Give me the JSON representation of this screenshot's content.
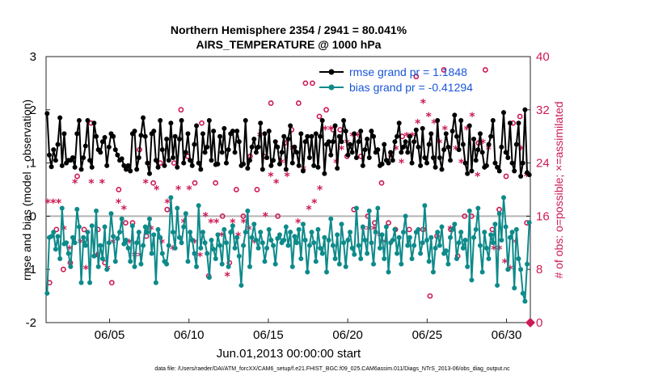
{
  "chart_data": {
    "type": "line",
    "title": "Northern Hemisphere 2354 / 2941 = 80.041%",
    "subtitle": "AIRS_TEMPERATURE @ 1000 hPa",
    "xlabel": "Jun.01,2013 00:00:00 start",
    "ylabel": "rmse and bias (model - observation)",
    "ylabel_right": "# of obs: o=possible; ×=assimilated",
    "ylim": [
      -2,
      3
    ],
    "ylim_right": [
      0,
      40
    ],
    "xlim": [
      1.0,
      31.5
    ],
    "x_ticks": [
      5,
      10,
      15,
      20,
      25,
      30
    ],
    "x_tick_labels": [
      "06/05",
      "06/10",
      "06/15",
      "06/20",
      "06/25",
      "06/30"
    ],
    "y_ticks": [
      -2,
      -1,
      0,
      1,
      2,
      3
    ],
    "y_tick_labels": [
      "-2",
      "-1",
      "0",
      "1",
      "2",
      "3"
    ],
    "y_ticks_right": [
      0,
      8,
      16,
      24,
      32,
      40
    ],
    "y_tick_labels_right": [
      "0",
      "8",
      "16",
      "24",
      "32",
      "40"
    ],
    "legend_position": "top-right",
    "footnote": "data file: /Users/raeder/DAI/ATM_forcXX/CAM6_setup/f.e21.FHIST_BGC.f09_025.CAM6assim.011/Diags_NTrS_2013-06/obs_diag_output.nc",
    "series": [
      {
        "name": "rmse grand pr = 1.1848",
        "color": "#000000",
        "values": [
          1.93,
          1.15,
          0.93,
          1.25,
          1.05,
          1.35,
          1.85,
          0.95,
          1.55,
          1.0,
          1.05,
          1.05,
          1.1,
          0.92,
          1.55,
          1.8,
          0.88,
          1.1,
          1.32,
          1.8,
          1.05,
          0.92,
          1.75,
          1.5,
          1.25,
          1.2,
          1.4,
          1.48,
          0.95,
          1.3,
          1.55,
          1.5,
          1.25,
          1.15,
          1.05,
          1.08,
          0.95,
          0.88,
          0.95,
          0.85,
          1.55,
          1.6,
          0.88,
          1.1,
          1.52,
          1.85,
          1.5,
          1.0,
          0.8,
          1.55,
          1.6,
          1.05,
          0.92,
          1.8,
          1.25,
          0.95,
          1.45,
          1.05,
          1.75,
          1.1,
          1.5,
          0.92,
          1.45,
          1.8,
          1.0,
          1.2,
          1.55,
          1.05,
          0.95,
          1.35,
          1.7,
          1.0,
          0.88,
          1.55,
          1.2,
          1.3,
          1.8,
          1.05,
          1.6,
          0.97,
          0.98,
          1.5,
          1.2,
          1.65,
          1.0,
          1.25,
          1.55,
          1.6,
          1.2,
          1.6,
          1.4,
          0.95,
          0.98,
          1.8,
          0.9,
          1.05,
          1.3,
          1.45,
          1.2,
          1.3,
          1.75,
          0.88,
          1.55,
          1.1,
          1.6,
          0.95,
          1.05,
          1.4,
          1.3,
          0.98,
          1.2,
          1.5,
          0.88,
          1.45,
          1.7,
          1.0,
          1.3,
          1.2,
          0.95,
          1.55,
          0.85,
          1.4,
          1.5,
          1.1,
          1.5,
          0.95,
          1.55,
          0.92,
          1.5,
          1.8,
          0.8,
          1.35,
          1.4,
          1.15,
          1.4,
          1.7,
          0.9,
          1.5,
          1.4,
          1.8,
          1.6,
          1.15,
          1.35,
          1.2,
          1.55,
          1.1,
          1.4,
          1.6,
          0.95,
          1.25,
          1.45,
          1.1,
          1.6,
          1.5,
          1.2,
          1.25,
          0.95,
          0.98,
          1.35,
          1.05,
          1.0,
          1.2,
          1.05,
          1.4,
          1.5,
          1.75,
          1.2,
          1.3,
          1.4,
          1.2,
          1.5,
          1.0,
          1.4,
          1.62,
          1.3,
          0.95,
          1.65,
          1.1,
          1.0,
          1.35,
          1.55,
          1.1,
          0.92,
          1.8,
          1.1,
          0.88,
          1.25,
          1.55,
          1.3,
          1.05,
          1.6,
          1.9,
          1.5,
          1.25,
          1.8,
          1.35,
          1.0,
          0.8,
          1.7,
          0.85,
          1.45,
          1.05,
          1.25,
          1.55,
          1.2,
          0.92,
          0.95,
          1.35,
          1.5,
          1.8,
          1.0,
          0.92,
          0.85,
          1.3,
          1.95,
          1.2,
          1.1,
          1.75,
          1.0,
          0.85,
          1.35,
          1.75,
          0.75,
          1.0,
          2.0,
          0.82,
          0.78
        ]
      },
      {
        "name": "bias grand pr = -0.41294",
        "color": "#0e8a8a",
        "values": [
          -1.45,
          -0.4,
          -0.38,
          -0.3,
          -0.62,
          -0.38,
          -0.8,
          0.15,
          -0.52,
          -0.5,
          -0.7,
          -0.95,
          -0.4,
          -0.5,
          0.13,
          -0.2,
          -1.25,
          -0.4,
          -0.55,
          -0.3,
          -1.25,
          -0.18,
          -0.75,
          0.1,
          -0.95,
          -0.55,
          -0.8,
          -0.2,
          -1.0,
          -0.5,
          0.05,
          -0.38,
          -0.85,
          -0.42,
          -0.3,
          -0.05,
          -0.52,
          -0.45,
          -0.6,
          -0.85,
          -0.18,
          -0.95,
          -0.5,
          -0.3,
          -0.9,
          -0.55,
          -0.2,
          -0.3,
          -0.05,
          -0.7,
          -0.35,
          -1.25,
          -0.25,
          -0.4,
          -0.7,
          -0.85,
          -0.9,
          -0.55,
          0.35,
          -0.3,
          -0.6,
          0.15,
          -0.4,
          -0.5,
          -0.2,
          0.05,
          -0.85,
          -0.3,
          -0.45,
          -0.7,
          -0.95,
          0.2,
          -0.6,
          -0.3,
          -0.5,
          -0.7,
          -1.15,
          -0.45,
          -0.62,
          -0.8,
          -0.35,
          -0.55,
          -0.9,
          -0.25,
          -0.5,
          -0.95,
          -0.3,
          -0.18,
          -0.6,
          -0.4,
          -0.75,
          -1.3,
          -0.55,
          -0.3,
          0.1,
          -0.95,
          -0.4,
          -0.15,
          -0.45,
          -0.6,
          -0.3,
          -0.5,
          -0.85,
          -0.6,
          -0.25,
          -0.45,
          -0.55,
          -0.9,
          -0.42,
          -0.35,
          -0.5,
          -0.45,
          -0.2,
          -0.55,
          -0.3,
          -0.95,
          -0.38,
          -0.5,
          -0.25,
          -0.8,
          -0.15,
          -0.45,
          -1.05,
          -0.55,
          -0.3,
          -0.5,
          -0.85,
          -0.25,
          -0.6,
          -0.7,
          -0.4,
          -1.05,
          -0.45,
          -0.05,
          -0.55,
          -0.8,
          -0.35,
          -0.9,
          -0.15,
          -0.5,
          -0.95,
          -0.45,
          -0.3,
          -0.6,
          -0.72,
          0.15,
          -0.55,
          -0.8,
          -0.2,
          -0.45,
          -0.7,
          0.1,
          -0.5,
          -0.9,
          -0.3,
          0.15,
          -0.6,
          -0.35,
          -0.8,
          -0.2,
          -1.05,
          -0.5,
          -0.45,
          -0.25,
          -0.7,
          -0.4,
          -0.9,
          -0.3,
          0.0,
          -0.55,
          -0.4,
          -0.8,
          -0.55,
          -0.3,
          -0.25,
          -0.7,
          -0.5,
          0.2,
          -0.45,
          -0.85,
          -0.4,
          -1.05,
          -0.6,
          -0.3,
          -0.55,
          -0.2,
          -0.7,
          -0.65,
          -0.9,
          -0.4,
          -0.25,
          -0.15,
          -0.8,
          -0.5,
          -0.3,
          -0.6,
          -0.45,
          -0.95,
          0.1,
          -1.2,
          -0.4,
          -0.25,
          0.15,
          -0.55,
          -1.05,
          -0.3,
          -0.6,
          -0.8,
          -0.35,
          -0.5,
          -0.15,
          -1.3,
          0.05,
          -0.45,
          0.35,
          -0.2,
          -1.0,
          -0.4,
          -0.3,
          -1.35,
          -0.25,
          -0.8,
          -1.0,
          -1.45,
          -1.6,
          -0.9,
          -0.12
        ]
      }
    ],
    "obs_possible": [
      6,
      14,
      8,
      9,
      22,
      14,
      30,
      14,
      9,
      6,
      20,
      15,
      15,
      26,
      13,
      21,
      24,
      17,
      24,
      32,
      25,
      21,
      30,
      7,
      21,
      16,
      9,
      20,
      16,
      25,
      20,
      25,
      33,
      16,
      27,
      29,
      33,
      36,
      36,
      31,
      32,
      29,
      29,
      25,
      17,
      25,
      16,
      15,
      21,
      15,
      14,
      28,
      14,
      37,
      14,
      4,
      13,
      38,
      14,
      10,
      16,
      16,
      27,
      38,
      14,
      17,
      22,
      30,
      31,
      15
    ],
    "obs_assimilated": [
      18,
      18,
      18,
      14,
      11,
      21,
      12,
      8,
      21,
      10,
      21,
      8,
      12,
      18,
      17,
      12,
      10,
      10,
      21,
      14,
      20,
      12,
      18,
      11,
      20,
      15,
      20,
      12,
      10,
      16,
      15,
      15,
      13,
      7,
      15,
      13,
      15,
      14,
      12,
      28,
      16,
      22,
      21,
      24,
      22,
      26,
      15,
      23,
      17,
      18,
      20,
      29,
      29,
      24,
      26,
      27,
      28,
      28,
      14,
      14,
      14,
      13,
      12,
      25,
      26,
      24,
      28,
      28,
      30,
      33,
      31,
      30,
      27,
      29,
      14,
      26,
      24,
      29,
      31,
      22,
      27,
      26,
      11,
      11,
      9,
      8,
      12,
      26,
      22
    ]
  }
}
